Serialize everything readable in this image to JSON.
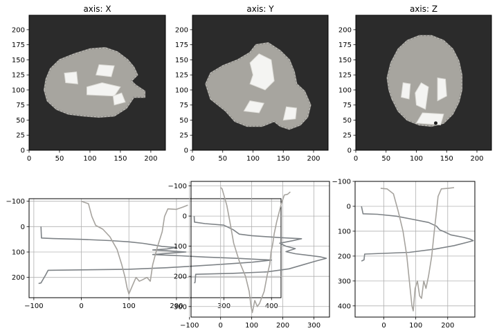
{
  "chart_data": [
    {
      "type": "image",
      "title": "axis: X",
      "xlim": [
        0,
        224
      ],
      "ylim": [
        224,
        0
      ],
      "xticks": [
        0,
        50,
        100,
        150,
        200
      ],
      "yticks": [
        0,
        25,
        50,
        75,
        100,
        125,
        150,
        175,
        200
      ],
      "background": "#2b2b2b",
      "blob": [
        [
          25,
          100
        ],
        [
          30,
          82
        ],
        [
          45,
          68
        ],
        [
          65,
          60
        ],
        [
          90,
          57
        ],
        [
          115,
          55
        ],
        [
          140,
          57
        ],
        [
          160,
          70
        ],
        [
          172,
          88
        ],
        [
          190,
          88
        ],
        [
          190,
          98
        ],
        [
          175,
          108
        ],
        [
          168,
          115
        ],
        [
          178,
          125
        ],
        [
          172,
          138
        ],
        [
          162,
          150
        ],
        [
          145,
          163
        ],
        [
          125,
          170
        ],
        [
          100,
          168
        ],
        [
          75,
          160
        ],
        [
          50,
          150
        ],
        [
          35,
          135
        ],
        [
          28,
          118
        ]
      ],
      "highlights": [
        [
          [
            95,
            92
          ],
          [
            140,
            90
          ],
          [
            150,
            105
          ],
          [
            120,
            112
          ],
          [
            95,
            105
          ]
        ],
        [
          [
            60,
            112
          ],
          [
            80,
            110
          ],
          [
            78,
            130
          ],
          [
            58,
            128
          ]
        ],
        [
          [
            110,
            125
          ],
          [
            135,
            122
          ],
          [
            140,
            140
          ],
          [
            115,
            142
          ]
        ],
        [
          [
            140,
            75
          ],
          [
            158,
            80
          ],
          [
            152,
            95
          ],
          [
            138,
            90
          ]
        ]
      ]
    },
    {
      "type": "image",
      "title": "axis: Y",
      "xlim": [
        0,
        224
      ],
      "ylim": [
        224,
        0
      ],
      "xticks": [
        0,
        50,
        100,
        150,
        200
      ],
      "yticks": [
        0,
        25,
        50,
        75,
        100,
        125,
        150,
        175,
        200
      ],
      "background": "#2b2b2b",
      "blob": [
        [
          30,
          85
        ],
        [
          55,
          65
        ],
        [
          70,
          48
        ],
        [
          90,
          40
        ],
        [
          115,
          40
        ],
        [
          135,
          48
        ],
        [
          145,
          40
        ],
        [
          160,
          35
        ],
        [
          178,
          42
        ],
        [
          190,
          55
        ],
        [
          195,
          75
        ],
        [
          185,
          98
        ],
        [
          172,
          110
        ],
        [
          168,
          130
        ],
        [
          160,
          150
        ],
        [
          145,
          165
        ],
        [
          125,
          178
        ],
        [
          105,
          175
        ],
        [
          95,
          162
        ],
        [
          75,
          150
        ],
        [
          50,
          140
        ],
        [
          30,
          128
        ],
        [
          22,
          110
        ]
      ],
      "highlights": [
        [
          [
            95,
            110
          ],
          [
            120,
            100
          ],
          [
            135,
            115
          ],
          [
            130,
            150
          ],
          [
            110,
            160
          ],
          [
            95,
            145
          ],
          [
            100,
            125
          ]
        ],
        [
          [
            85,
            65
          ],
          [
            110,
            62
          ],
          [
            118,
            78
          ],
          [
            95,
            82
          ]
        ],
        [
          [
            150,
            50
          ],
          [
            170,
            52
          ],
          [
            172,
            70
          ],
          [
            155,
            72
          ]
        ]
      ]
    },
    {
      "type": "image",
      "title": "axis: Z",
      "xlim": [
        0,
        224
      ],
      "ylim": [
        224,
        0
      ],
      "xticks": [
        0,
        50,
        100,
        150,
        200
      ],
      "yticks": [
        0,
        25,
        50,
        75,
        100,
        125,
        150,
        175,
        200
      ],
      "background": "#2b2b2b",
      "blob": [
        [
          60,
          85
        ],
        [
          70,
          65
        ],
        [
          85,
          50
        ],
        [
          105,
          42
        ],
        [
          125,
          40
        ],
        [
          145,
          45
        ],
        [
          160,
          60
        ],
        [
          170,
          80
        ],
        [
          175,
          100
        ],
        [
          175,
          125
        ],
        [
          170,
          148
        ],
        [
          160,
          168
        ],
        [
          145,
          182
        ],
        [
          125,
          190
        ],
        [
          105,
          190
        ],
        [
          85,
          182
        ],
        [
          70,
          168
        ],
        [
          58,
          145
        ],
        [
          52,
          120
        ],
        [
          55,
          100
        ]
      ],
      "highlights": [
        [
          [
            100,
            75
          ],
          [
            115,
            68
          ],
          [
            120,
            105
          ],
          [
            108,
            112
          ],
          [
            98,
            95
          ]
        ],
        [
          [
            135,
            82
          ],
          [
            150,
            90
          ],
          [
            148,
            118
          ],
          [
            135,
            120
          ]
        ],
        [
          [
            75,
            88
          ],
          [
            88,
            85
          ],
          [
            90,
            110
          ],
          [
            78,
            112
          ]
        ],
        [
          [
            100,
            45
          ],
          [
            140,
            42
          ],
          [
            145,
            60
          ],
          [
            110,
            62
          ]
        ]
      ],
      "marker": [
        132,
        45
      ]
    },
    {
      "type": "line",
      "xlim": [
        -110,
        420
      ],
      "ylim": [
        -110,
        280
      ],
      "xticks": [
        -100,
        0,
        100,
        200,
        300,
        400
      ],
      "yticks": [
        -100,
        0,
        100,
        200
      ],
      "grid": true,
      "series": [
        {
          "color": "#7d8286",
          "points": [
            [
              -85,
              0
            ],
            [
              -84,
              45
            ],
            [
              -60,
              47
            ],
            [
              0,
              50
            ],
            [
              60,
              55
            ],
            [
              100,
              60
            ],
            [
              130,
              66
            ],
            [
              150,
              72
            ],
            [
              170,
              78
            ],
            [
              200,
              82
            ],
            [
              180,
              88
            ],
            [
              150,
              92
            ],
            [
              180,
              95
            ],
            [
              220,
              100
            ],
            [
              185,
              105
            ],
            [
              150,
              110
            ],
            [
              175,
              112
            ],
            [
              210,
              115
            ],
            [
              260,
              120
            ],
            [
              330,
              125
            ],
            [
              400,
              132
            ],
            [
              360,
              140
            ],
            [
              300,
              148
            ],
            [
              240,
              155
            ],
            [
              180,
              162
            ],
            [
              100,
              168
            ],
            [
              -70,
              172
            ],
            [
              -75,
              190
            ],
            [
              -85,
              222
            ],
            [
              -90,
              224
            ]
          ]
        },
        {
          "color": "#a6a39e",
          "points": [
            [
              0,
              -100
            ],
            [
              15,
              -90
            ],
            [
              22,
              -40
            ],
            [
              30,
              -5
            ],
            [
              45,
              10
            ],
            [
              60,
              40
            ],
            [
              75,
              90
            ],
            [
              85,
              150
            ],
            [
              92,
              200
            ],
            [
              96,
              240
            ],
            [
              100,
              265
            ],
            [
              108,
              230
            ],
            [
              115,
              200
            ],
            [
              122,
              215
            ],
            [
              128,
              210
            ],
            [
              138,
              200
            ],
            [
              145,
              215
            ],
            [
              150,
              150
            ],
            [
              160,
              80
            ],
            [
              170,
              20
            ],
            [
              175,
              -40
            ],
            [
              182,
              -70
            ],
            [
              200,
              -68
            ],
            [
              215,
              -78
            ],
            [
              224,
              -85
            ]
          ]
        }
      ]
    },
    {
      "type": "line",
      "xlim": [
        -95,
        350
      ],
      "ylim": [
        -115,
        335
      ],
      "xticks": [
        -100,
        0,
        100,
        200,
        300
      ],
      "yticks": [
        -100,
        0,
        100,
        200,
        300
      ],
      "grid": true,
      "series": [
        {
          "color": "#7d8286",
          "points": [
            [
              -85,
              0
            ],
            [
              -84,
              20
            ],
            [
              -50,
              25
            ],
            [
              10,
              30
            ],
            [
              40,
              45
            ],
            [
              60,
              60
            ],
            [
              100,
              65
            ],
            [
              140,
              68
            ],
            [
              170,
              70
            ],
            [
              200,
              72
            ],
            [
              260,
              75
            ],
            [
              230,
              82
            ],
            [
              190,
              90
            ],
            [
              210,
              100
            ],
            [
              240,
              108
            ],
            [
              210,
              118
            ],
            [
              240,
              125
            ],
            [
              280,
              130
            ],
            [
              320,
              135
            ],
            [
              340,
              140
            ],
            [
              310,
              148
            ],
            [
              270,
              160
            ],
            [
              220,
              175
            ],
            [
              150,
              185
            ],
            [
              40,
              190
            ],
            [
              -80,
              193
            ],
            [
              -82,
              220
            ],
            [
              -85,
              222
            ]
          ]
        },
        {
          "color": "#a6a39e",
          "points": [
            [
              0,
              -95
            ],
            [
              5,
              -90
            ],
            [
              20,
              -35
            ],
            [
              30,
              20
            ],
            [
              42,
              90
            ],
            [
              60,
              150
            ],
            [
              80,
              200
            ],
            [
              92,
              250
            ],
            [
              98,
              300
            ],
            [
              102,
              320
            ],
            [
              110,
              280
            ],
            [
              118,
              300
            ],
            [
              125,
              290
            ],
            [
              140,
              250
            ],
            [
              150,
              195
            ],
            [
              158,
              160
            ],
            [
              162,
              120
            ],
            [
              168,
              90
            ],
            [
              172,
              60
            ],
            [
              180,
              20
            ],
            [
              195,
              -40
            ],
            [
              205,
              -70
            ],
            [
              215,
              -72
            ],
            [
              224,
              -80
            ]
          ]
        }
      ]
    },
    {
      "type": "line",
      "xlim": [
        -90,
        285
      ],
      "ylim": [
        -100,
        445
      ],
      "xticks": [
        0,
        100,
        200
      ],
      "yticks": [
        -100,
        0,
        100,
        200,
        300,
        400
      ],
      "grid": true,
      "series": [
        {
          "color": "#7d8286",
          "points": [
            [
              -70,
              0
            ],
            [
              -65,
              30
            ],
            [
              -20,
              32
            ],
            [
              40,
              40
            ],
            [
              80,
              50
            ],
            [
              140,
              65
            ],
            [
              165,
              80
            ],
            [
              175,
              95
            ],
            [
              185,
              100
            ],
            [
              210,
              115
            ],
            [
              250,
              125
            ],
            [
              270,
              132
            ],
            [
              280,
              138
            ],
            [
              260,
              145
            ],
            [
              220,
              158
            ],
            [
              160,
              172
            ],
            [
              80,
              185
            ],
            [
              -60,
              192
            ],
            [
              -62,
              215
            ],
            [
              -70,
              220
            ]
          ]
        },
        {
          "color": "#a6a39e",
          "points": [
            [
              -10,
              -72
            ],
            [
              10,
              -70
            ],
            [
              30,
              -50
            ],
            [
              45,
              20
            ],
            [
              60,
              100
            ],
            [
              72,
              200
            ],
            [
              80,
              300
            ],
            [
              88,
              400
            ],
            [
              92,
              420
            ],
            [
              98,
              330
            ],
            [
              105,
              300
            ],
            [
              112,
              360
            ],
            [
              118,
              370
            ],
            [
              125,
              300
            ],
            [
              132,
              330
            ],
            [
              140,
              280
            ],
            [
              150,
              200
            ],
            [
              158,
              100
            ],
            [
              165,
              20
            ],
            [
              170,
              -40
            ],
            [
              180,
              -70
            ],
            [
              200,
              -72
            ],
            [
              220,
              -75
            ]
          ]
        }
      ]
    }
  ]
}
